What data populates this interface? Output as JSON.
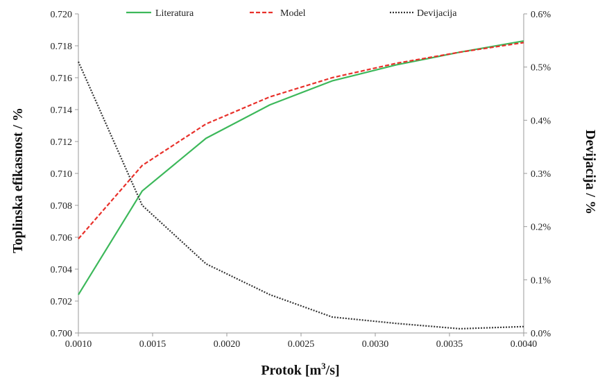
{
  "chart_data": {
    "type": "line",
    "xlabel": "Protok [m³/s]",
    "xlabel_parts": {
      "pre": "Protok [m",
      "sup": "3",
      "post": "/s]"
    },
    "ylabel_left": "Toplinska efikasnost / %",
    "ylabel_right": "Devijacija / %",
    "xlim": [
      0.001,
      0.004
    ],
    "ylim_left": [
      0.7,
      0.72
    ],
    "ylim_right": [
      0.0,
      0.6
    ],
    "x_ticks": [
      "0.0010",
      "0.0015",
      "0.0020",
      "0.0025",
      "0.0030",
      "0.0035",
      "0.0040"
    ],
    "y_left_ticks": [
      "0.700",
      "0.702",
      "0.704",
      "0.706",
      "0.708",
      "0.710",
      "0.712",
      "0.714",
      "0.716",
      "0.718",
      "0.720"
    ],
    "y_right_ticks": [
      "0.0%",
      "0.1%",
      "0.2%",
      "0.3%",
      "0.4%",
      "0.5%",
      "0.6%"
    ],
    "legend_position": "top",
    "series": [
      {
        "name": "Literatura",
        "axis": "left",
        "color": "#3cb85a",
        "style": "solid",
        "x": [
          0.001,
          0.00143,
          0.00186,
          0.00229,
          0.00271,
          0.00314,
          0.00357,
          0.004
        ],
        "y": [
          0.7024,
          0.7089,
          0.7122,
          0.7143,
          0.7158,
          0.7168,
          0.7176,
          0.7183
        ]
      },
      {
        "name": "Model",
        "axis": "left",
        "color": "#e8302a",
        "style": "dashed",
        "x": [
          0.001,
          0.00143,
          0.00186,
          0.00229,
          0.00271,
          0.00314,
          0.00357,
          0.004
        ],
        "y": [
          0.7059,
          0.7105,
          0.7131,
          0.7148,
          0.716,
          0.7169,
          0.7176,
          0.7182
        ]
      },
      {
        "name": "Devijacija",
        "axis": "right",
        "color": "#333333",
        "style": "dotted",
        "x": [
          0.001,
          0.00143,
          0.00186,
          0.00229,
          0.00271,
          0.00314,
          0.00357,
          0.004
        ],
        "y": [
          0.51,
          0.24,
          0.13,
          0.072,
          0.03,
          0.018,
          0.008,
          0.012
        ]
      }
    ]
  }
}
